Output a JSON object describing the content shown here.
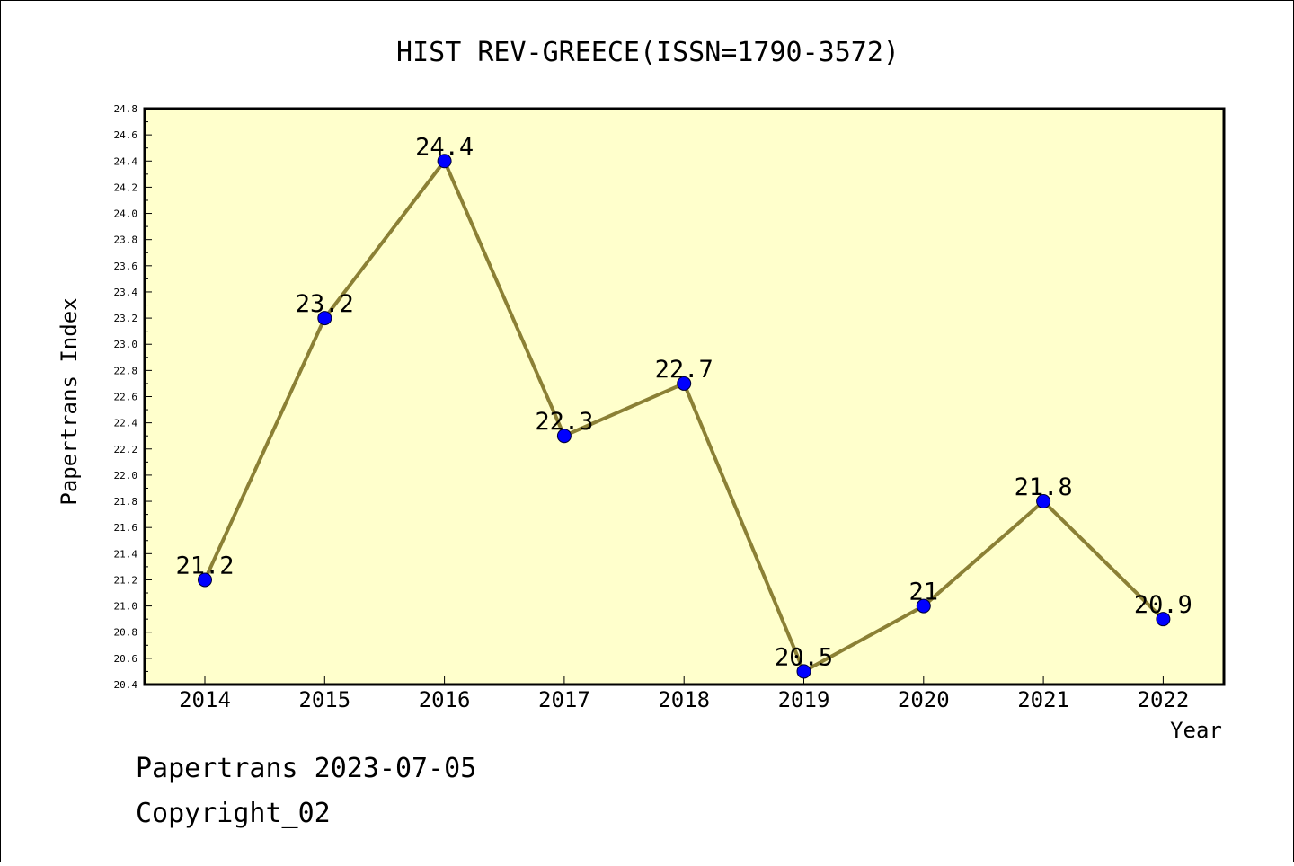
{
  "chart_data": {
    "type": "line",
    "title": "HIST REV-GREECE(ISSN=1790-3572)",
    "xlabel": "Year",
    "ylabel": "Papertrans Index",
    "x": [
      "2014",
      "2015",
      "2016",
      "2017",
      "2018",
      "2019",
      "2020",
      "2021",
      "2022"
    ],
    "values": [
      21.2,
      23.2,
      24.4,
      22.3,
      22.7,
      20.5,
      21.0,
      21.8,
      20.9
    ],
    "data_labels": [
      "21.2",
      "23.2",
      "24.4",
      "22.3",
      "22.7",
      "20.5",
      "21",
      "21.8",
      "20.9"
    ],
    "ylim": [
      20.4,
      24.8
    ],
    "yticks": [
      "20.4",
      "20.6",
      "20.8",
      "21.0",
      "21.2",
      "21.4",
      "21.6",
      "21.8",
      "22.0",
      "22.2",
      "22.4",
      "22.6",
      "22.8",
      "23.0",
      "23.2",
      "23.4",
      "23.6",
      "23.8",
      "24.0",
      "24.2",
      "24.4",
      "24.6",
      "24.8"
    ],
    "grid": false,
    "colors": {
      "plot_background": "#ffffcc",
      "line": "#8b8035",
      "marker": "#0000ff"
    }
  },
  "footer": {
    "line1": "Papertrans 2023-07-05",
    "line2": "Copyright_02"
  }
}
